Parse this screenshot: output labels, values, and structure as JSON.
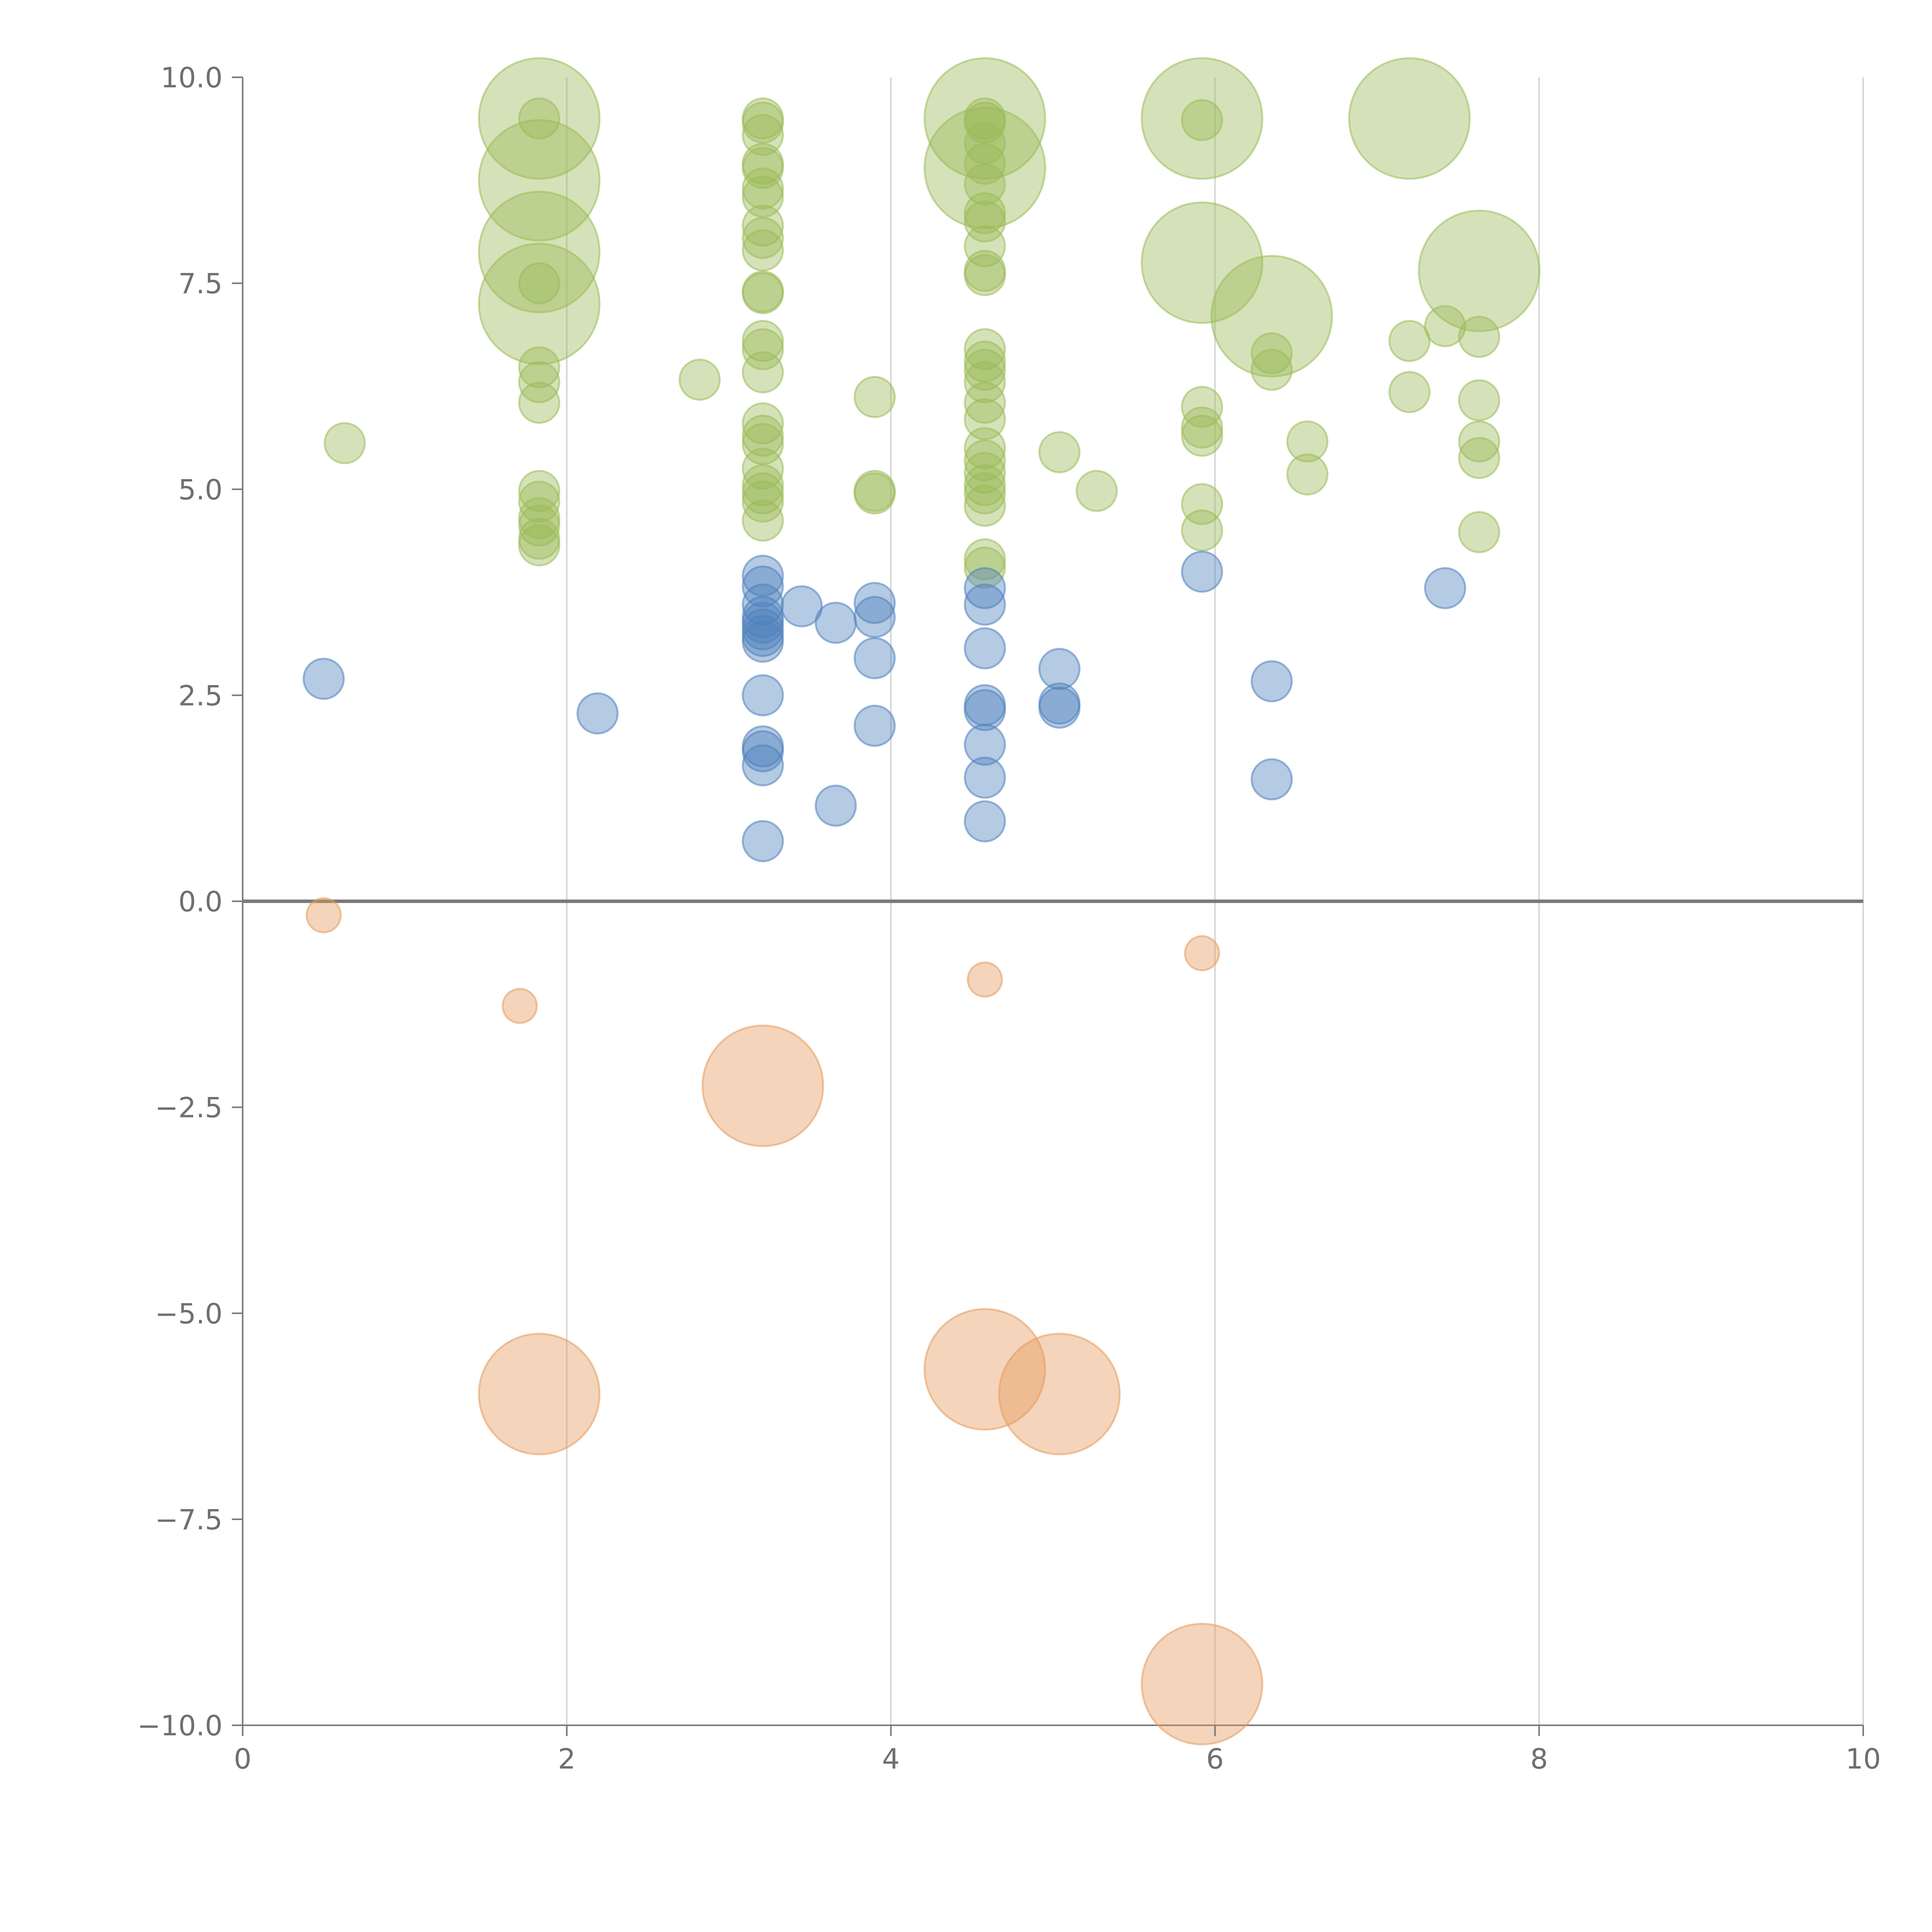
{
  "colors": {
    "positive_high": "#9bbb59",
    "positive_low": "#4f81bd",
    "negative": "#e59a5c",
    "axis": "#7a7a7a",
    "grid": "#d6d6d6",
    "tick_text": "#6f6f6f"
  },
  "chart_data": {
    "type": "scatter",
    "title": "",
    "xlabel": "",
    "ylabel": "",
    "xlim": [
      0,
      10
    ],
    "ylim": [
      -10,
      10
    ],
    "grid": "vertical",
    "x_ticks": [
      0,
      2,
      4,
      6,
      8,
      10
    ],
    "x_tick_labels": [
      "0",
      "2",
      "4",
      "6",
      "8",
      "10"
    ],
    "y_ticks": [
      10,
      7.5,
      5,
      2.5,
      0,
      -2.5,
      -5,
      -7.5,
      -10
    ],
    "y_tick_labels": [
      "10.0",
      "7.5",
      "5.0",
      "2.5",
      "0.0",
      "−2.5",
      "−5.0",
      "−7.5",
      "−10.0"
    ],
    "series": [
      {
        "name": "green",
        "color_key": "positive_high",
        "points": [
          [
            0.63,
            5.56,
            1
          ],
          [
            1.83,
            9.5,
            3
          ],
          [
            1.83,
            9.5,
            1
          ],
          [
            1.83,
            8.75,
            3
          ],
          [
            1.83,
            7.88,
            3
          ],
          [
            1.83,
            7.25,
            3
          ],
          [
            1.83,
            7.5,
            1
          ],
          [
            1.83,
            6.48,
            1
          ],
          [
            1.83,
            6.3,
            1
          ],
          [
            1.83,
            6.05,
            1
          ],
          [
            1.83,
            4.98,
            1
          ],
          [
            1.83,
            4.85,
            1
          ],
          [
            1.83,
            4.65,
            1
          ],
          [
            1.83,
            4.56,
            1
          ],
          [
            1.83,
            4.4,
            1
          ],
          [
            1.83,
            4.32,
            1
          ],
          [
            2.82,
            6.33,
            1
          ],
          [
            3.21,
            9.5,
            1
          ],
          [
            3.21,
            9.45,
            1
          ],
          [
            3.21,
            9.3,
            1
          ],
          [
            3.21,
            8.95,
            1
          ],
          [
            3.21,
            8.9,
            1
          ],
          [
            3.21,
            8.65,
            1
          ],
          [
            3.21,
            8.55,
            1
          ],
          [
            3.21,
            8.2,
            1
          ],
          [
            3.21,
            8.05,
            1
          ],
          [
            3.21,
            7.9,
            1
          ],
          [
            3.21,
            7.4,
            1
          ],
          [
            3.21,
            7.38,
            1
          ],
          [
            3.21,
            6.8,
            1
          ],
          [
            3.21,
            6.7,
            1
          ],
          [
            3.21,
            6.42,
            1
          ],
          [
            3.21,
            5.8,
            1
          ],
          [
            3.21,
            5.65,
            1
          ],
          [
            3.21,
            5.55,
            1
          ],
          [
            3.21,
            5.25,
            1
          ],
          [
            3.21,
            5.05,
            1
          ],
          [
            3.21,
            4.95,
            1
          ],
          [
            3.21,
            4.85,
            1
          ],
          [
            3.21,
            4.62,
            1
          ],
          [
            3.9,
            6.12,
            1
          ],
          [
            3.9,
            4.98,
            1
          ],
          [
            3.9,
            4.95,
            1
          ],
          [
            4.58,
            9.5,
            3
          ],
          [
            4.58,
            8.9,
            3
          ],
          [
            4.58,
            9.5,
            1
          ],
          [
            4.58,
            9.45,
            1
          ],
          [
            4.58,
            9.2,
            1
          ],
          [
            4.58,
            8.95,
            1
          ],
          [
            4.58,
            8.7,
            1
          ],
          [
            4.58,
            8.35,
            1
          ],
          [
            4.58,
            8.25,
            1
          ],
          [
            4.58,
            7.95,
            1
          ],
          [
            4.58,
            7.65,
            1
          ],
          [
            4.58,
            7.6,
            1
          ],
          [
            4.58,
            6.7,
            1
          ],
          [
            4.58,
            6.55,
            1
          ],
          [
            4.58,
            6.45,
            1
          ],
          [
            4.58,
            6.3,
            1
          ],
          [
            4.58,
            6.05,
            1
          ],
          [
            4.58,
            5.85,
            1
          ],
          [
            4.58,
            5.5,
            1
          ],
          [
            4.58,
            5.35,
            1
          ],
          [
            4.58,
            5.2,
            1
          ],
          [
            4.58,
            5.05,
            1
          ],
          [
            4.58,
            4.95,
            1
          ],
          [
            4.58,
            4.8,
            1
          ],
          [
            4.58,
            4.15,
            1
          ],
          [
            4.58,
            4.05,
            1
          ],
          [
            5.04,
            5.45,
            1
          ],
          [
            5.27,
            4.98,
            1
          ],
          [
            5.92,
            9.5,
            3
          ],
          [
            5.92,
            9.48,
            1
          ],
          [
            5.92,
            7.75,
            3
          ],
          [
            5.92,
            6.0,
            1
          ],
          [
            5.92,
            5.75,
            1
          ],
          [
            5.92,
            5.65,
            1
          ],
          [
            5.92,
            4.82,
            1
          ],
          [
            5.92,
            4.5,
            1
          ],
          [
            6.35,
            7.1,
            3
          ],
          [
            6.35,
            6.65,
            1
          ],
          [
            6.35,
            6.45,
            1
          ],
          [
            6.57,
            5.58,
            1
          ],
          [
            6.57,
            5.18,
            1
          ],
          [
            7.2,
            9.5,
            3
          ],
          [
            7.2,
            6.8,
            1
          ],
          [
            7.2,
            6.18,
            1
          ],
          [
            7.42,
            6.98,
            1
          ],
          [
            7.63,
            7.65,
            3
          ],
          [
            7.63,
            6.85,
            1
          ],
          [
            7.63,
            6.08,
            1
          ],
          [
            7.63,
            5.58,
            1
          ],
          [
            7.63,
            5.38,
            1
          ],
          [
            7.63,
            4.48,
            1
          ]
        ]
      },
      {
        "name": "blue",
        "color_key": "positive_low",
        "points": [
          [
            0.5,
            2.7,
            1
          ],
          [
            2.19,
            2.28,
            1
          ],
          [
            3.21,
            3.95,
            1
          ],
          [
            3.21,
            3.82,
            1
          ],
          [
            3.21,
            3.6,
            1
          ],
          [
            3.21,
            3.45,
            1
          ],
          [
            3.21,
            3.38,
            1
          ],
          [
            3.21,
            3.3,
            1
          ],
          [
            3.21,
            3.22,
            1
          ],
          [
            3.21,
            3.15,
            1
          ],
          [
            3.21,
            2.5,
            1
          ],
          [
            3.21,
            1.88,
            1
          ],
          [
            3.21,
            1.82,
            1
          ],
          [
            3.21,
            1.65,
            1
          ],
          [
            3.21,
            0.73,
            1
          ],
          [
            3.45,
            3.58,
            1
          ],
          [
            3.66,
            3.38,
            1
          ],
          [
            3.66,
            1.16,
            1
          ],
          [
            3.9,
            3.62,
            1
          ],
          [
            3.9,
            3.45,
            1
          ],
          [
            3.9,
            2.95,
            1
          ],
          [
            3.9,
            2.13,
            1
          ],
          [
            4.58,
            3.8,
            1
          ],
          [
            4.58,
            3.6,
            1
          ],
          [
            4.58,
            3.07,
            1
          ],
          [
            4.58,
            2.38,
            1
          ],
          [
            4.58,
            2.32,
            1
          ],
          [
            4.58,
            1.9,
            1
          ],
          [
            4.58,
            1.5,
            1
          ],
          [
            4.58,
            0.97,
            1
          ],
          [
            5.04,
            2.82,
            1
          ],
          [
            5.04,
            2.4,
            1
          ],
          [
            5.04,
            2.35,
            1
          ],
          [
            5.92,
            4.0,
            1
          ],
          [
            6.35,
            2.67,
            1
          ],
          [
            6.35,
            1.48,
            1
          ],
          [
            7.42,
            3.8,
            1
          ]
        ]
      },
      {
        "name": "orange",
        "color_key": "negative",
        "points": [
          [
            0.5,
            -0.17,
            0.85
          ],
          [
            1.71,
            -1.27,
            0.85
          ],
          [
            1.83,
            -5.98,
            3
          ],
          [
            3.21,
            -2.24,
            3
          ],
          [
            4.58,
            -0.95,
            0.85
          ],
          [
            4.58,
            -5.68,
            3
          ],
          [
            5.04,
            -5.98,
            3
          ],
          [
            5.92,
            -0.63,
            0.85
          ],
          [
            5.92,
            -9.5,
            3
          ]
        ]
      }
    ]
  }
}
